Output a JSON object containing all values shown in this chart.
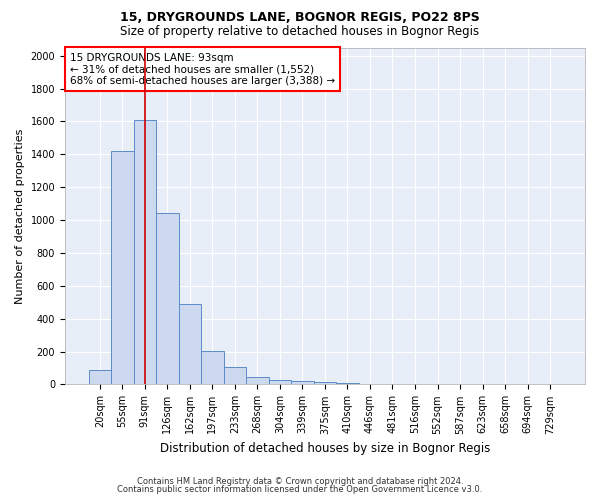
{
  "title1": "15, DRYGROUNDS LANE, BOGNOR REGIS, PO22 8PS",
  "title2": "Size of property relative to detached houses in Bognor Regis",
  "xlabel": "Distribution of detached houses by size in Bognor Regis",
  "ylabel": "Number of detached properties",
  "bar_color": "#ccd9ee",
  "bar_edge_color": "#5b8bc9",
  "categories": [
    "20sqm",
    "55sqm",
    "91sqm",
    "126sqm",
    "162sqm",
    "197sqm",
    "233sqm",
    "268sqm",
    "304sqm",
    "339sqm",
    "375sqm",
    "410sqm",
    "446sqm",
    "481sqm",
    "516sqm",
    "552sqm",
    "587sqm",
    "623sqm",
    "658sqm",
    "694sqm",
    "729sqm"
  ],
  "values": [
    85,
    1420,
    1610,
    1045,
    490,
    205,
    105,
    45,
    30,
    20,
    15,
    8,
    0,
    0,
    0,
    0,
    0,
    0,
    0,
    0,
    0
  ],
  "redline_index": 2,
  "ylim": [
    0,
    2050
  ],
  "yticks": [
    0,
    200,
    400,
    600,
    800,
    1000,
    1200,
    1400,
    1600,
    1800,
    2000
  ],
  "annotation_text": "15 DRYGROUNDS LANE: 93sqm\n← 31% of detached houses are smaller (1,552)\n68% of semi-detached houses are larger (3,388) →",
  "footer1": "Contains HM Land Registry data © Crown copyright and database right 2024.",
  "footer2": "Contains public sector information licensed under the Open Government Licence v3.0.",
  "bg_color": "#ffffff",
  "plot_bg_color": "#e8eef8",
  "grid_color": "#ffffff",
  "title1_fontsize": 9,
  "title2_fontsize": 8.5,
  "ylabel_fontsize": 8,
  "xlabel_fontsize": 8.5,
  "tick_fontsize": 7,
  "footer_fontsize": 6,
  "annot_fontsize": 7.5
}
